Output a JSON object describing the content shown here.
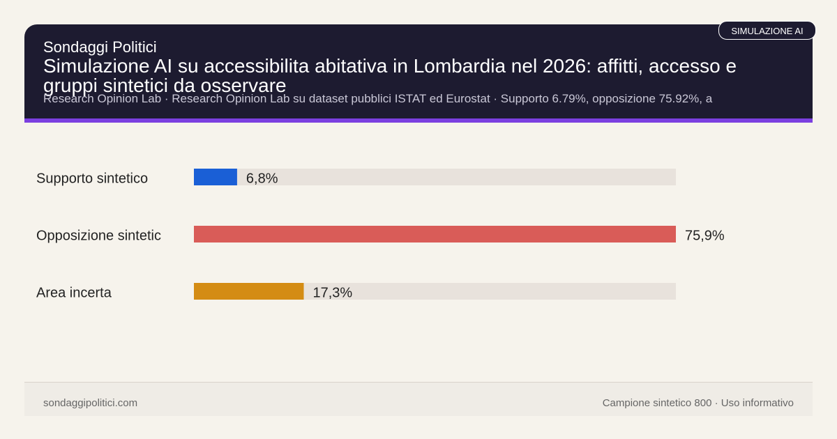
{
  "header": {
    "kicker": "Sondaggi Politici",
    "title": "Simulazione AI su accessibilita abitativa in Lombardia nel 2026: affitti, accesso e gruppi sintetici da osservare",
    "subtitle": "Research Opinion Lab · Research Opinion Lab su dataset pubblici ISTAT ed Eurostat · Supporto 6.79%, opposizione 75.92%, a",
    "badge": "SIMULAZIONE AI"
  },
  "chart_data": {
    "type": "bar",
    "orientation": "horizontal",
    "categories": [
      "Supporto sintetico",
      "Opposizione sintetic",
      "Area incerta"
    ],
    "values": [
      6.8,
      75.9,
      17.3
    ],
    "value_labels": [
      "6,8%",
      "75,9%",
      "17,3%"
    ],
    "colors": [
      "#1a5fd6",
      "#d95c58",
      "#d48c14"
    ],
    "track_color": "#e8e2dc"
  },
  "footer": {
    "left": "sondaggipolitici.com",
    "right": "Campione sintetico 800 · Uso informativo"
  }
}
